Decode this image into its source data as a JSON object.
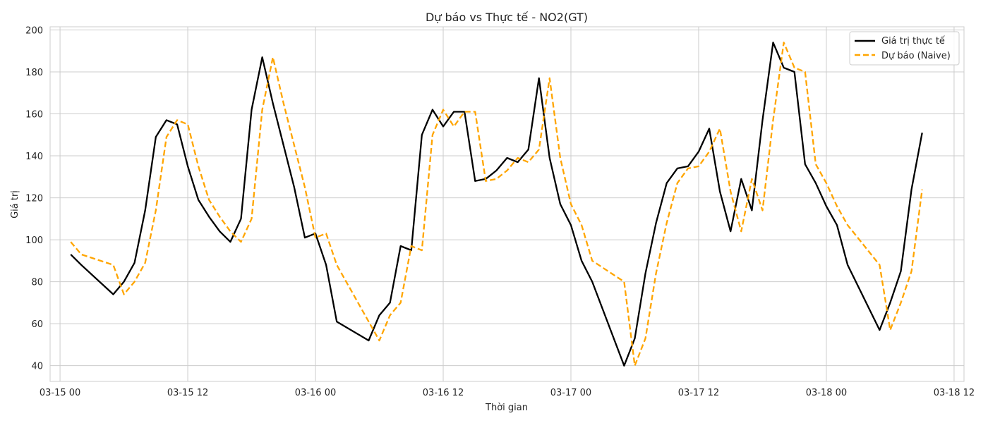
{
  "chart_data": {
    "type": "line",
    "title": "Dự báo vs Thực tế - NO2(GT)",
    "xlabel": "Thời gian",
    "ylabel": "Giá trị",
    "xlim": [
      "2004-03-14 23:04",
      "2004-03-18 12:56"
    ],
    "ylim": [
      32.5,
      201.5
    ],
    "x_ticks": [
      "03-15 00",
      "03-15 12",
      "03-16 00",
      "03-16 12",
      "03-17 00",
      "03-17 12",
      "03-18 00",
      "03-18 12"
    ],
    "y_ticks": [
      40,
      60,
      80,
      100,
      120,
      140,
      160,
      180,
      200
    ],
    "grid": true,
    "legend_position": "top-right",
    "series": [
      {
        "name": "Giá trị thực tế",
        "color": "#000000",
        "style": "solid",
        "points": [
          [
            "2004-03-15 01:00",
            93
          ],
          [
            "2004-03-15 02:00",
            88
          ],
          [
            "2004-03-15 05:00",
            74
          ],
          [
            "2004-03-15 06:00",
            80
          ],
          [
            "2004-03-15 07:00",
            89
          ],
          [
            "2004-03-15 08:00",
            114
          ],
          [
            "2004-03-15 09:00",
            149
          ],
          [
            "2004-03-15 10:00",
            157
          ],
          [
            "2004-03-15 11:00",
            155
          ],
          [
            "2004-03-15 12:00",
            135
          ],
          [
            "2004-03-15 13:00",
            119
          ],
          [
            "2004-03-15 14:00",
            111
          ],
          [
            "2004-03-15 15:00",
            104
          ],
          [
            "2004-03-15 16:00",
            99
          ],
          [
            "2004-03-15 17:00",
            110
          ],
          [
            "2004-03-15 18:00",
            162
          ],
          [
            "2004-03-15 19:00",
            187
          ],
          [
            "2004-03-15 20:00",
            165
          ],
          [
            "2004-03-15 21:00",
            145
          ],
          [
            "2004-03-15 22:00",
            125
          ],
          [
            "2004-03-15 23:00",
            101
          ],
          [
            "2004-03-16 00:00",
            103
          ],
          [
            "2004-03-16 01:00",
            88
          ],
          [
            "2004-03-16 02:00",
            61
          ],
          [
            "2004-03-16 05:00",
            52
          ],
          [
            "2004-03-16 06:00",
            64
          ],
          [
            "2004-03-16 07:00",
            70
          ],
          [
            "2004-03-16 08:00",
            97
          ],
          [
            "2004-03-16 09:00",
            95
          ],
          [
            "2004-03-16 10:00",
            150
          ],
          [
            "2004-03-16 11:00",
            162
          ],
          [
            "2004-03-16 12:00",
            154
          ],
          [
            "2004-03-16 13:00",
            161
          ],
          [
            "2004-03-16 14:00",
            161
          ],
          [
            "2004-03-16 15:00",
            128
          ],
          [
            "2004-03-16 16:00",
            129
          ],
          [
            "2004-03-16 17:00",
            133
          ],
          [
            "2004-03-16 18:00",
            139
          ],
          [
            "2004-03-16 19:00",
            137
          ],
          [
            "2004-03-16 20:00",
            143
          ],
          [
            "2004-03-16 21:00",
            177
          ],
          [
            "2004-03-16 22:00",
            139
          ],
          [
            "2004-03-16 23:00",
            117
          ],
          [
            "2004-03-17 00:00",
            107
          ],
          [
            "2004-03-17 01:00",
            90
          ],
          [
            "2004-03-17 02:00",
            80
          ],
          [
            "2004-03-17 05:00",
            40
          ],
          [
            "2004-03-17 06:00",
            53
          ],
          [
            "2004-03-17 07:00",
            84
          ],
          [
            "2004-03-17 08:00",
            108
          ],
          [
            "2004-03-17 09:00",
            127
          ],
          [
            "2004-03-17 10:00",
            134
          ],
          [
            "2004-03-17 11:00",
            135
          ],
          [
            "2004-03-17 12:00",
            142
          ],
          [
            "2004-03-17 13:00",
            153
          ],
          [
            "2004-03-17 14:00",
            123
          ],
          [
            "2004-03-17 15:00",
            104
          ],
          [
            "2004-03-17 16:00",
            129
          ],
          [
            "2004-03-17 17:00",
            114
          ],
          [
            "2004-03-17 18:00",
            157
          ],
          [
            "2004-03-17 19:00",
            194
          ],
          [
            "2004-03-17 20:00",
            182
          ],
          [
            "2004-03-17 21:00",
            180
          ],
          [
            "2004-03-17 22:00",
            136
          ],
          [
            "2004-03-17 23:00",
            127
          ],
          [
            "2004-03-18 00:00",
            116
          ],
          [
            "2004-03-18 01:00",
            107
          ],
          [
            "2004-03-18 02:00",
            88
          ],
          [
            "2004-03-18 05:00",
            57
          ],
          [
            "2004-03-18 06:00",
            70
          ],
          [
            "2004-03-18 07:00",
            85
          ],
          [
            "2004-03-18 08:00",
            124
          ],
          [
            "2004-03-18 09:00",
            151
          ]
        ]
      },
      {
        "name": "Dự báo (Naive)",
        "color": "#FFA500",
        "style": "dashed",
        "points": [
          [
            "2004-03-15 01:00",
            99
          ],
          [
            "2004-03-15 02:00",
            93
          ],
          [
            "2004-03-15 05:00",
            88
          ],
          [
            "2004-03-15 06:00",
            74
          ],
          [
            "2004-03-15 07:00",
            80
          ],
          [
            "2004-03-15 08:00",
            89
          ],
          [
            "2004-03-15 09:00",
            114
          ],
          [
            "2004-03-15 10:00",
            149
          ],
          [
            "2004-03-15 11:00",
            157
          ],
          [
            "2004-03-15 12:00",
            155
          ],
          [
            "2004-03-15 13:00",
            135
          ],
          [
            "2004-03-15 14:00",
            119
          ],
          [
            "2004-03-15 15:00",
            111
          ],
          [
            "2004-03-15 16:00",
            104
          ],
          [
            "2004-03-15 17:00",
            99
          ],
          [
            "2004-03-15 18:00",
            110
          ],
          [
            "2004-03-15 19:00",
            162
          ],
          [
            "2004-03-15 20:00",
            187
          ],
          [
            "2004-03-15 21:00",
            165
          ],
          [
            "2004-03-15 22:00",
            145
          ],
          [
            "2004-03-15 23:00",
            125
          ],
          [
            "2004-03-16 00:00",
            101
          ],
          [
            "2004-03-16 01:00",
            103
          ],
          [
            "2004-03-16 02:00",
            88
          ],
          [
            "2004-03-16 05:00",
            61
          ],
          [
            "2004-03-16 06:00",
            52
          ],
          [
            "2004-03-16 07:00",
            64
          ],
          [
            "2004-03-16 08:00",
            70
          ],
          [
            "2004-03-16 09:00",
            97
          ],
          [
            "2004-03-16 10:00",
            95
          ],
          [
            "2004-03-16 11:00",
            150
          ],
          [
            "2004-03-16 12:00",
            162
          ],
          [
            "2004-03-16 13:00",
            154
          ],
          [
            "2004-03-16 14:00",
            161
          ],
          [
            "2004-03-16 15:00",
            161
          ],
          [
            "2004-03-16 16:00",
            128
          ],
          [
            "2004-03-16 17:00",
            129
          ],
          [
            "2004-03-16 18:00",
            133
          ],
          [
            "2004-03-16 19:00",
            139
          ],
          [
            "2004-03-16 20:00",
            137
          ],
          [
            "2004-03-16 21:00",
            143
          ],
          [
            "2004-03-16 22:00",
            177
          ],
          [
            "2004-03-16 23:00",
            139
          ],
          [
            "2004-03-17 00:00",
            117
          ],
          [
            "2004-03-17 01:00",
            107
          ],
          [
            "2004-03-17 02:00",
            90
          ],
          [
            "2004-03-17 05:00",
            80
          ],
          [
            "2004-03-17 06:00",
            40
          ],
          [
            "2004-03-17 07:00",
            53
          ],
          [
            "2004-03-17 08:00",
            84
          ],
          [
            "2004-03-17 09:00",
            108
          ],
          [
            "2004-03-17 10:00",
            127
          ],
          [
            "2004-03-17 11:00",
            134
          ],
          [
            "2004-03-17 12:00",
            135
          ],
          [
            "2004-03-17 13:00",
            142
          ],
          [
            "2004-03-17 14:00",
            153
          ],
          [
            "2004-03-17 15:00",
            123
          ],
          [
            "2004-03-17 16:00",
            104
          ],
          [
            "2004-03-17 17:00",
            129
          ],
          [
            "2004-03-17 18:00",
            114
          ],
          [
            "2004-03-17 19:00",
            157
          ],
          [
            "2004-03-17 20:00",
            194
          ],
          [
            "2004-03-17 21:00",
            182
          ],
          [
            "2004-03-17 22:00",
            180
          ],
          [
            "2004-03-17 23:00",
            136
          ],
          [
            "2004-03-18 00:00",
            127
          ],
          [
            "2004-03-18 01:00",
            116
          ],
          [
            "2004-03-18 02:00",
            107
          ],
          [
            "2004-03-18 05:00",
            88
          ],
          [
            "2004-03-18 06:00",
            57
          ],
          [
            "2004-03-18 07:00",
            70
          ],
          [
            "2004-03-18 08:00",
            85
          ],
          [
            "2004-03-18 09:00",
            124
          ]
        ]
      }
    ]
  }
}
